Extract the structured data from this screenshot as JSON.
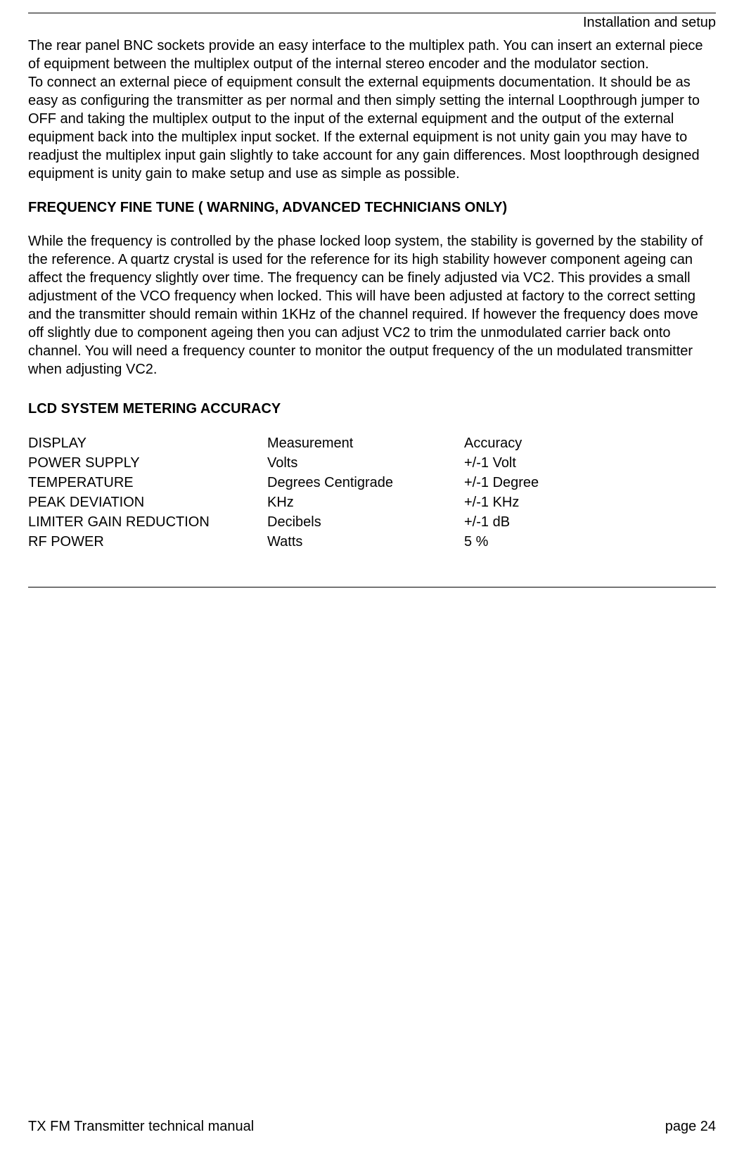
{
  "header": {
    "title": "Installation and setup"
  },
  "content": {
    "paragraph1": "The  rear panel BNC sockets provide an easy interface to the multiplex path. You can insert an external piece of equipment between the multiplex output of the internal stereo encoder and the modulator section.",
    "paragraph2": "To connect an external piece of equipment consult the external equipments documentation. It should be as easy as configuring the transmitter as per normal and then simply setting the internal Loopthrough jumper to OFF and taking the multiplex output to the input of the external equipment and the output of the external equipment back into the multiplex input socket. If the external equipment is not unity gain you may have to readjust the multiplex input gain slightly to take account for any gain differences. Most loopthrough designed equipment is unity gain to make setup and use as simple as possible.",
    "heading1": "FREQUENCY FINE TUNE ( WARNING, ADVANCED TECHNICIANS ONLY)",
    "paragraph3": "While the frequency is controlled by the phase locked loop system, the stability is governed by the stability of the reference. A quartz crystal is used for the reference for its high stability however component ageing can affect the frequency slightly over time. The frequency can be finely adjusted via VC2. This provides a small adjustment of the VCO frequency when locked. This will have been adjusted at factory to the correct setting and the transmitter should remain within 1KHz of the channel required. If however the frequency does  move off slightly due to component ageing then you can adjust VC2 to trim the unmodulated carrier back onto channel. You will need a frequency counter to monitor the output frequency of the un modulated transmitter when adjusting VC2.",
    "heading2": "LCD SYSTEM METERING ACCURACY"
  },
  "table": {
    "columns": [
      "DISPLAY",
      "Measurement",
      "Accuracy"
    ],
    "rows": [
      [
        "POWER SUPPLY",
        "Volts",
        "+/-1 Volt"
      ],
      [
        "TEMPERATURE",
        "Degrees Centigrade",
        "+/-1 Degree"
      ],
      [
        "PEAK DEVIATION",
        "KHz",
        "+/-1 KHz"
      ],
      [
        "LIMITER GAIN REDUCTION",
        "Decibels",
        "+/-1 dB"
      ],
      [
        "RF POWER",
        "Watts",
        "5 %"
      ]
    ]
  },
  "footer": {
    "left": "TX FM Transmitter technical manual",
    "right": "page 24"
  }
}
